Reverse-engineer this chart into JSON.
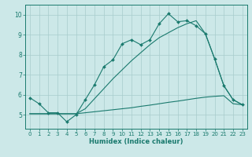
{
  "title": "",
  "xlabel": "Humidex (Indice chaleur)",
  "bg_color": "#cce8e8",
  "line_color": "#1a7a6e",
  "grid_color": "#a8cccc",
  "xlim": [
    -0.5,
    23.5
  ],
  "ylim": [
    4.3,
    10.5
  ],
  "xticks": [
    0,
    1,
    2,
    3,
    4,
    5,
    6,
    7,
    8,
    9,
    10,
    11,
    12,
    13,
    14,
    15,
    16,
    17,
    18,
    19,
    20,
    21,
    22,
    23
  ],
  "yticks": [
    5,
    6,
    7,
    8,
    9,
    10
  ],
  "line1_x": [
    0,
    1,
    2,
    3,
    4,
    5,
    6,
    7,
    8,
    9,
    10,
    11,
    12,
    13,
    14,
    15,
    16,
    17,
    18,
    19,
    20,
    21,
    22,
    23
  ],
  "line1_y": [
    5.85,
    5.55,
    5.1,
    5.1,
    4.65,
    5.0,
    5.75,
    6.5,
    7.4,
    7.75,
    8.55,
    8.75,
    8.5,
    8.75,
    9.55,
    10.05,
    9.65,
    9.7,
    9.45,
    9.05,
    7.8,
    6.45,
    5.75,
    5.5
  ],
  "line2_x": [
    0,
    1,
    2,
    3,
    4,
    5,
    6,
    7,
    8,
    9,
    10,
    11,
    12,
    13,
    14,
    15,
    16,
    17,
    18,
    19,
    20,
    21,
    22,
    23
  ],
  "line2_y": [
    5.05,
    5.05,
    5.05,
    5.05,
    5.05,
    5.05,
    5.1,
    5.15,
    5.2,
    5.25,
    5.3,
    5.35,
    5.42,
    5.48,
    5.55,
    5.62,
    5.68,
    5.75,
    5.82,
    5.88,
    5.92,
    5.95,
    5.55,
    5.5
  ],
  "line3_x": [
    0,
    1,
    2,
    3,
    4,
    5,
    6,
    7,
    8,
    9,
    10,
    11,
    12,
    13,
    14,
    15,
    16,
    17,
    18,
    19,
    20,
    21,
    22,
    23
  ],
  "line3_y": [
    5.05,
    5.05,
    5.05,
    5.05,
    5.05,
    5.05,
    5.3,
    5.8,
    6.3,
    6.8,
    7.25,
    7.7,
    8.1,
    8.5,
    8.85,
    9.1,
    9.35,
    9.55,
    9.7,
    9.05,
    7.8,
    6.45,
    5.75,
    5.5
  ]
}
